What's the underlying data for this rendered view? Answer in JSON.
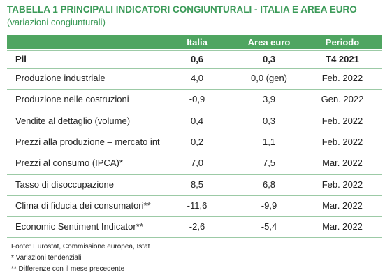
{
  "header": {
    "title": "TABELLA 1  PRINCIPALI INDICATORI CONGIUNTURALI - ITALIA E AREA EURO",
    "subtitle": "(variazioni congiunturali)"
  },
  "table": {
    "columns": [
      "",
      "Italia",
      "Area euro",
      "Periodo"
    ],
    "rows": [
      [
        "Pil",
        "0,6",
        "0,3",
        "T4 2021"
      ],
      [
        "Produzione industriale",
        "4,0",
        "0,0 (gen)",
        "Feb. 2022"
      ],
      [
        "Produzione nelle costruzioni",
        "-0,9",
        "3,9",
        "Gen. 2022"
      ],
      [
        "Vendite al dettaglio (volume)",
        "0,4",
        "0,3",
        "Feb. 2022"
      ],
      [
        "Prezzi alla produzione – mercato int",
        "0,2",
        "1,1",
        "Feb. 2022"
      ],
      [
        "Prezzi al consumo (IPCA)*",
        "7,0",
        "7,5",
        "Mar. 2022"
      ],
      [
        "Tasso di disoccupazione",
        "8,5",
        "6,8",
        "Feb. 2022"
      ],
      [
        "Clima di fiducia dei consumatori**",
        "-11,6",
        "-9,9",
        "Mar. 2022"
      ],
      [
        "Economic Sentiment Indicator**",
        "-2,6",
        "-5,4",
        "Mar. 2022"
      ]
    ]
  },
  "footnotes": [
    "Fonte: Eurostat, Commissione europea, Istat",
    "* Variazioni tendenziali",
    "** Differenze con il mese precedente"
  ]
}
